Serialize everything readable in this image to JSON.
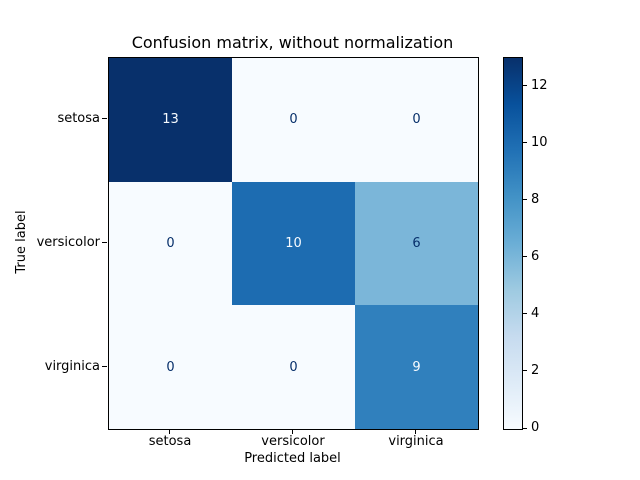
{
  "chart_data": {
    "type": "heatmap",
    "title": "Confusion matrix, without normalization",
    "xlabel": "Predicted label",
    "ylabel": "True label",
    "classes": [
      "setosa",
      "versicolor",
      "virginica"
    ],
    "matrix": [
      [
        13,
        0,
        0
      ],
      [
        0,
        10,
        6
      ],
      [
        0,
        0,
        9
      ]
    ],
    "vmin": 0,
    "vmax": 13,
    "colormap": "Blues",
    "legend_position": "right-colorbar",
    "grid": false,
    "cell_colors": [
      [
        "#08306b",
        "#f7fbff",
        "#f7fbff"
      ],
      [
        "#f7fbff",
        "#1d6cb1",
        "#7bb6d9"
      ],
      [
        "#f7fbff",
        "#f7fbff",
        "#3080bd"
      ]
    ],
    "cell_text_colors": [
      [
        "#f7fbff",
        "#08306b",
        "#08306b"
      ],
      [
        "#08306b",
        "#f7fbff",
        "#08306b"
      ],
      [
        "#08306b",
        "#08306b",
        "#f7fbff"
      ]
    ],
    "colorbar": {
      "ticks": [
        0,
        2,
        4,
        6,
        8,
        10,
        12
      ],
      "gradient_stops": [
        "#f7fbff",
        "#deebf7",
        "#c6dbef",
        "#9ecae1",
        "#6baed6",
        "#4292c6",
        "#2171b5",
        "#08519c",
        "#08306b"
      ]
    }
  }
}
